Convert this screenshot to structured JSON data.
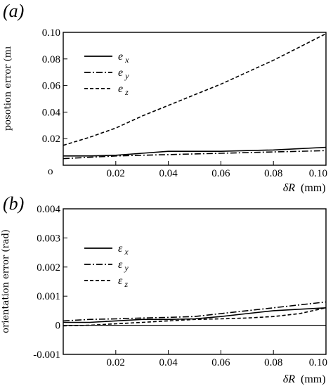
{
  "chart_data": [
    {
      "type": "line",
      "panel_label": "(a)",
      "ylabel": "posotion error (mı",
      "xlabel": "δR",
      "xunit": "(mm)",
      "xlim": [
        0,
        0.1
      ],
      "ylim": [
        0,
        0.1
      ],
      "x_tick_labels": [
        "0.02",
        "0.04",
        "0.06",
        "0.08",
        "0.10"
      ],
      "x_ticks": [
        0.02,
        0.04,
        0.06,
        0.08,
        0.1
      ],
      "y_tick_labels": [
        "0.02",
        "0.04",
        "0.06",
        "0.08",
        "0.10"
      ],
      "y_ticks": [
        0.02,
        0.04,
        0.06,
        0.08,
        0.1
      ],
      "origin_label": "o",
      "legend_position": "top-left",
      "series": [
        {
          "name": "e",
          "subscript": "x",
          "style": "solid",
          "x": [
            0,
            0.01,
            0.02,
            0.03,
            0.04,
            0.05,
            0.06,
            0.07,
            0.08,
            0.09,
            0.1
          ],
          "y": [
            0.007,
            0.007,
            0.0075,
            0.009,
            0.0105,
            0.0105,
            0.0105,
            0.011,
            0.0115,
            0.0125,
            0.0135
          ]
        },
        {
          "name": "e",
          "subscript": "y",
          "style": "dashdot",
          "x": [
            0,
            0.01,
            0.02,
            0.03,
            0.04,
            0.05,
            0.06,
            0.07,
            0.08,
            0.09,
            0.1
          ],
          "y": [
            0.005,
            0.006,
            0.007,
            0.0075,
            0.008,
            0.0085,
            0.009,
            0.0095,
            0.01,
            0.0105,
            0.011
          ]
        },
        {
          "name": "e",
          "subscript": "z",
          "style": "dashed",
          "x": [
            0,
            0.01,
            0.02,
            0.03,
            0.04,
            0.05,
            0.06,
            0.07,
            0.08,
            0.09,
            0.1
          ],
          "y": [
            0.015,
            0.021,
            0.028,
            0.037,
            0.045,
            0.053,
            0.061,
            0.07,
            0.079,
            0.089,
            0.099
          ]
        }
      ]
    },
    {
      "type": "line",
      "panel_label": "(b)",
      "ylabel": "orientation error (rad)",
      "xlabel": "δR",
      "xunit": "(mm)",
      "xlim": [
        0,
        0.1
      ],
      "ylim": [
        -0.001,
        0.004
      ],
      "x_tick_labels": [
        "0.02",
        "0.04",
        "0.06",
        "0.08",
        "0.10"
      ],
      "x_ticks": [
        0.02,
        0.04,
        0.06,
        0.08,
        0.1
      ],
      "y_tick_labels": [
        "-0.001",
        "0",
        "0.001",
        "0.002",
        "0.003",
        "0.004"
      ],
      "y_ticks": [
        -0.001,
        0,
        0.001,
        0.002,
        0.003,
        0.004
      ],
      "zero_line": true,
      "legend_position": "top-left",
      "series": [
        {
          "name": "ε",
          "subscript": "x",
          "style": "solid",
          "x": [
            0,
            0.01,
            0.02,
            0.03,
            0.04,
            0.05,
            0.06,
            0.07,
            0.08,
            0.09,
            0.1
          ],
          "y": [
            0.0001,
            0.0001,
            0.00015,
            0.0002,
            0.0002,
            0.00022,
            0.0003,
            0.0004,
            0.0005,
            0.00055,
            0.0006
          ]
        },
        {
          "name": "ε",
          "subscript": "y",
          "style": "dashdot",
          "x": [
            0,
            0.01,
            0.02,
            0.03,
            0.04,
            0.05,
            0.06,
            0.07,
            0.08,
            0.09,
            0.1
          ],
          "y": [
            0.00015,
            0.0002,
            0.00022,
            0.00025,
            0.00027,
            0.0003,
            0.0004,
            0.0005,
            0.0006,
            0.0007,
            0.0008
          ]
        },
        {
          "name": "ε",
          "subscript": "z",
          "style": "dashed",
          "x": [
            0,
            0.01,
            0.02,
            0.03,
            0.04,
            0.05,
            0.06,
            0.07,
            0.08,
            0.09,
            0.1
          ],
          "y": [
            -2e-05,
            0,
            5e-05,
            0.0001,
            0.00015,
            0.0002,
            0.00022,
            0.00025,
            0.0003,
            0.0004,
            0.0006
          ]
        }
      ]
    }
  ]
}
